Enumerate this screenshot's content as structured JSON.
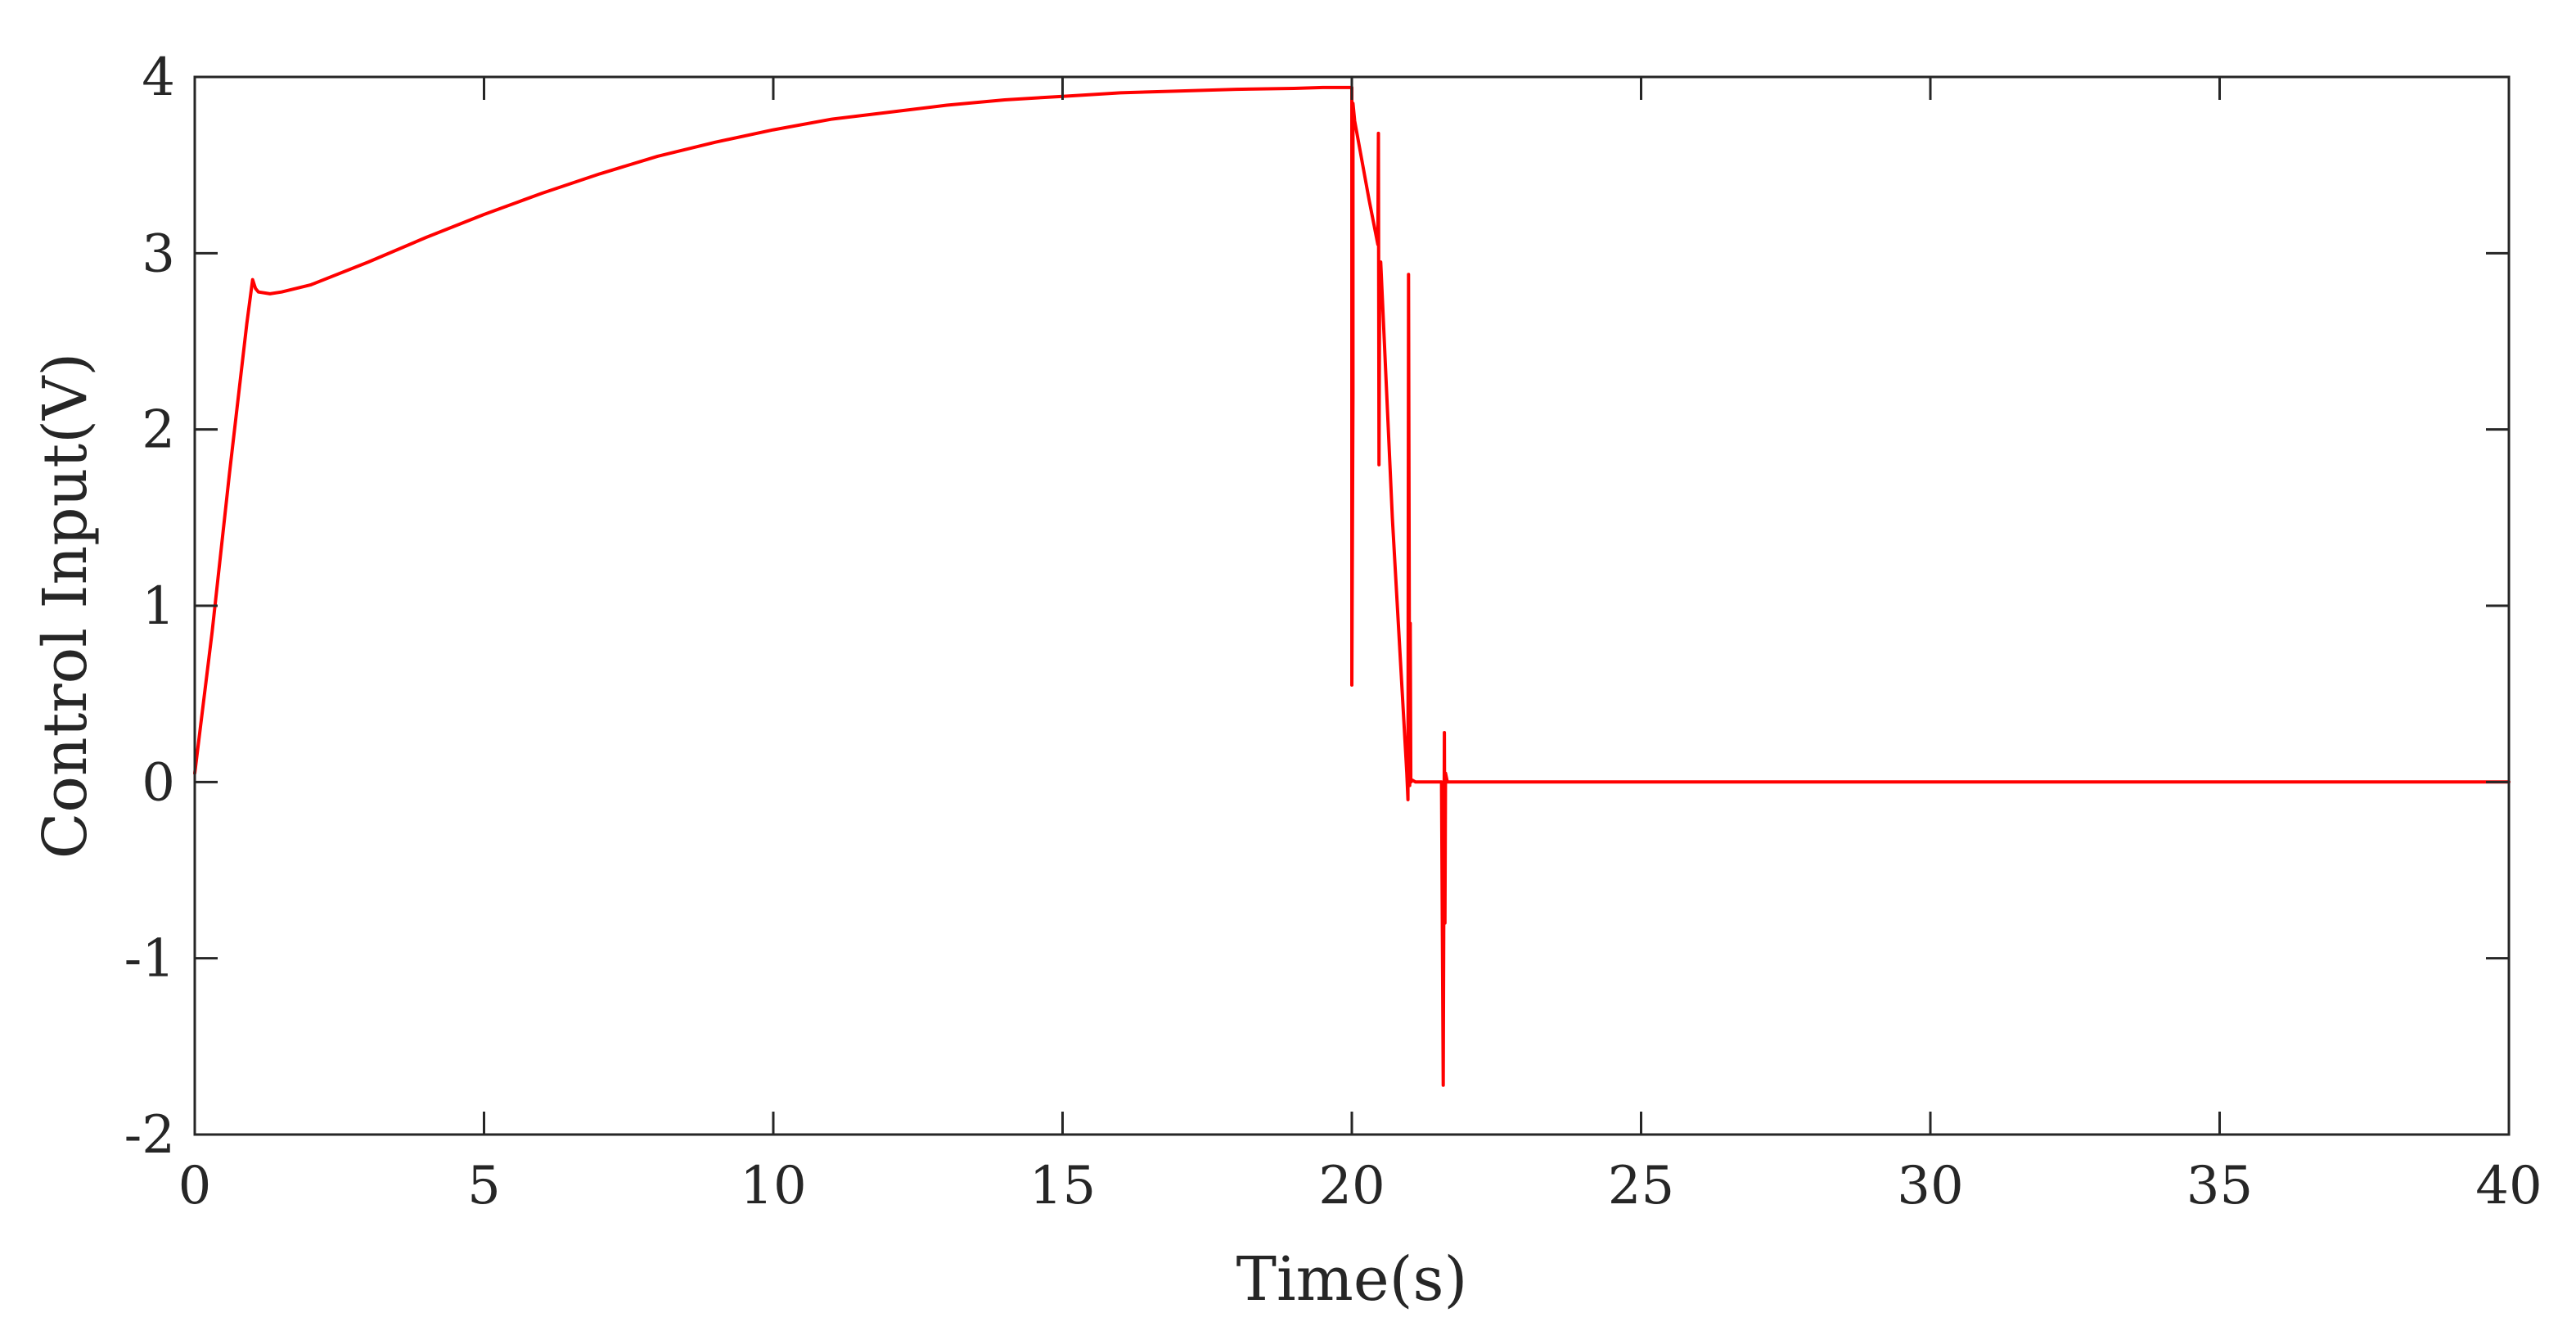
{
  "chart_data": {
    "type": "line",
    "title": "",
    "xlabel": "Time(s)",
    "ylabel": "Control Input(V)",
    "xlim": [
      0,
      40
    ],
    "ylim": [
      -2,
      4
    ],
    "xticks": [
      0,
      5,
      10,
      15,
      20,
      25,
      30,
      35,
      40
    ],
    "yticks": [
      -2,
      -1,
      0,
      1,
      2,
      3,
      4
    ],
    "xtick_labels": [
      "0",
      "5",
      "10",
      "15",
      "20",
      "25",
      "30",
      "35",
      "40"
    ],
    "ytick_labels": [
      "-2",
      "-1",
      "0",
      "1",
      "2",
      "3",
      "4"
    ],
    "grid": false,
    "legend": "none",
    "line_color": "#ff0000",
    "series": [
      {
        "x": [
          0,
          0.3,
          0.6,
          0.9,
          1.0,
          1.05,
          1.1,
          1.3,
          1.5,
          2,
          3,
          4,
          5,
          6,
          7,
          8,
          9,
          10,
          11,
          12,
          13,
          14,
          15,
          16,
          17,
          18,
          19,
          19.5,
          20,
          20.0,
          20.02,
          20.02,
          20.05,
          20.3,
          20.45,
          20.46,
          20.47,
          20.48,
          20.5,
          20.7,
          20.95,
          20.97,
          20.98,
          21.0,
          21.01,
          21.02,
          21.05,
          21.1,
          21.3,
          21.55,
          21.58,
          21.6,
          21.61,
          21.62,
          21.65,
          21.7,
          22,
          25,
          30,
          35,
          40
        ],
        "y": [
          0.05,
          0.85,
          1.75,
          2.6,
          2.85,
          2.8,
          2.78,
          2.77,
          2.78,
          2.82,
          2.95,
          3.09,
          3.22,
          3.34,
          3.45,
          3.55,
          3.63,
          3.7,
          3.76,
          3.8,
          3.84,
          3.87,
          3.89,
          3.91,
          3.92,
          3.93,
          3.935,
          3.94,
          3.94,
          0.55,
          2.2,
          3.85,
          3.75,
          3.3,
          3.05,
          3.68,
          1.8,
          2.7,
          2.95,
          1.5,
          0.05,
          -0.1,
          2.88,
          -0.02,
          0.9,
          0.0,
          0.01,
          0.0,
          0.0,
          0.0,
          -1.72,
          0.28,
          -0.8,
          0.05,
          0.0,
          0.0,
          0.0,
          0.0,
          0.0,
          0.0,
          0.0
        ]
      }
    ]
  }
}
